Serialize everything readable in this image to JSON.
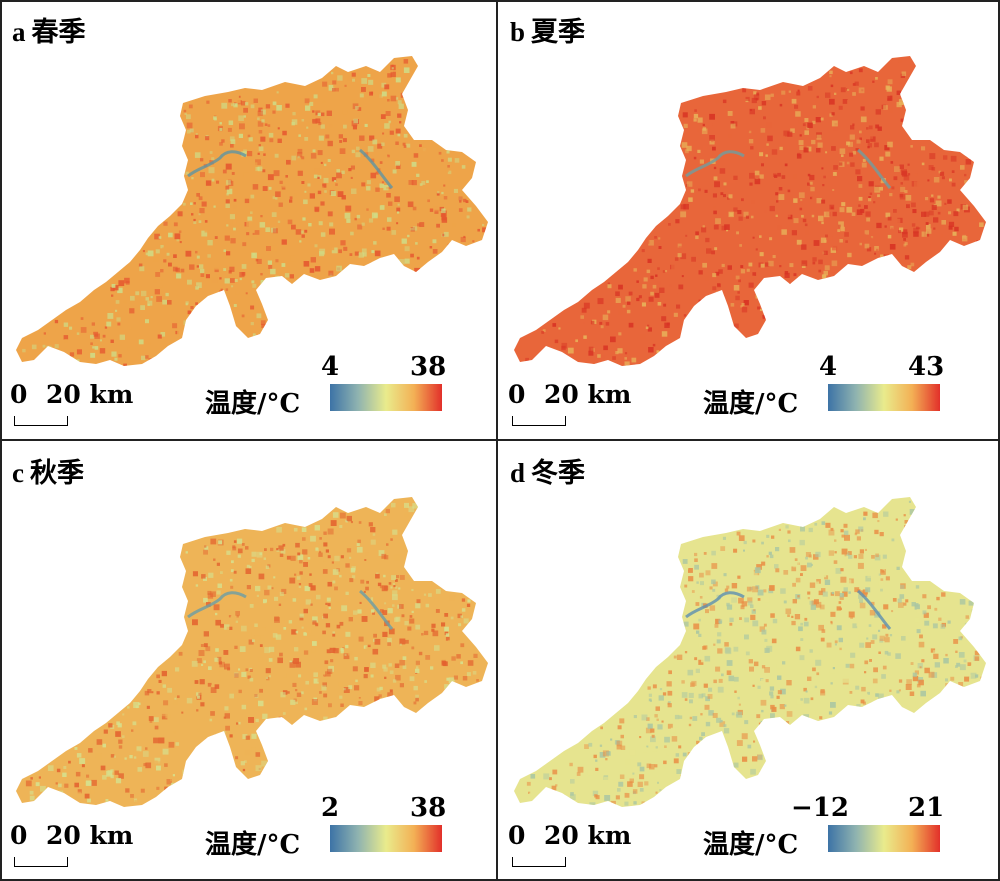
{
  "colormap": [
    "#3d73a6",
    "#8fb3b0",
    "#e9eb8c",
    "#f3b055",
    "#e2302a"
  ],
  "panels": [
    {
      "letter": "a",
      "season": "春季",
      "min_label": "4",
      "max_label": "38",
      "legend_label": "温度/°C",
      "scale_zero": "0",
      "scale_dist": "20 km",
      "tone": {
        "base": "#eea449",
        "hot": "#e5562f",
        "cool": "#cfdc86",
        "water": "#5f95a3"
      }
    },
    {
      "letter": "b",
      "season": "夏季",
      "min_label": "4",
      "max_label": "43",
      "legend_label": "温度/°C",
      "scale_zero": "0",
      "scale_dist": "20 km",
      "tone": {
        "base": "#e8663a",
        "hot": "#d83324",
        "cool": "#e8b35a",
        "water": "#6f9ea0"
      }
    },
    {
      "letter": "c",
      "season": "秋季",
      "min_label": "2",
      "max_label": "38",
      "legend_label": "温度/°C",
      "scale_zero": "0",
      "scale_dist": "20 km",
      "tone": {
        "base": "#eeb457",
        "hot": "#e3622f",
        "cool": "#d6e18e",
        "water": "#6a9ea6"
      }
    },
    {
      "letter": "d",
      "season": "冬季",
      "min_label": "−12",
      "max_label": "21",
      "legend_label": "温度/°C",
      "scale_zero": "0",
      "scale_dist": "20 km",
      "tone": {
        "base": "#e6e48f",
        "hot": "#e98e45",
        "cool": "#a9c6a3",
        "water": "#5c8fb0"
      }
    }
  ]
}
